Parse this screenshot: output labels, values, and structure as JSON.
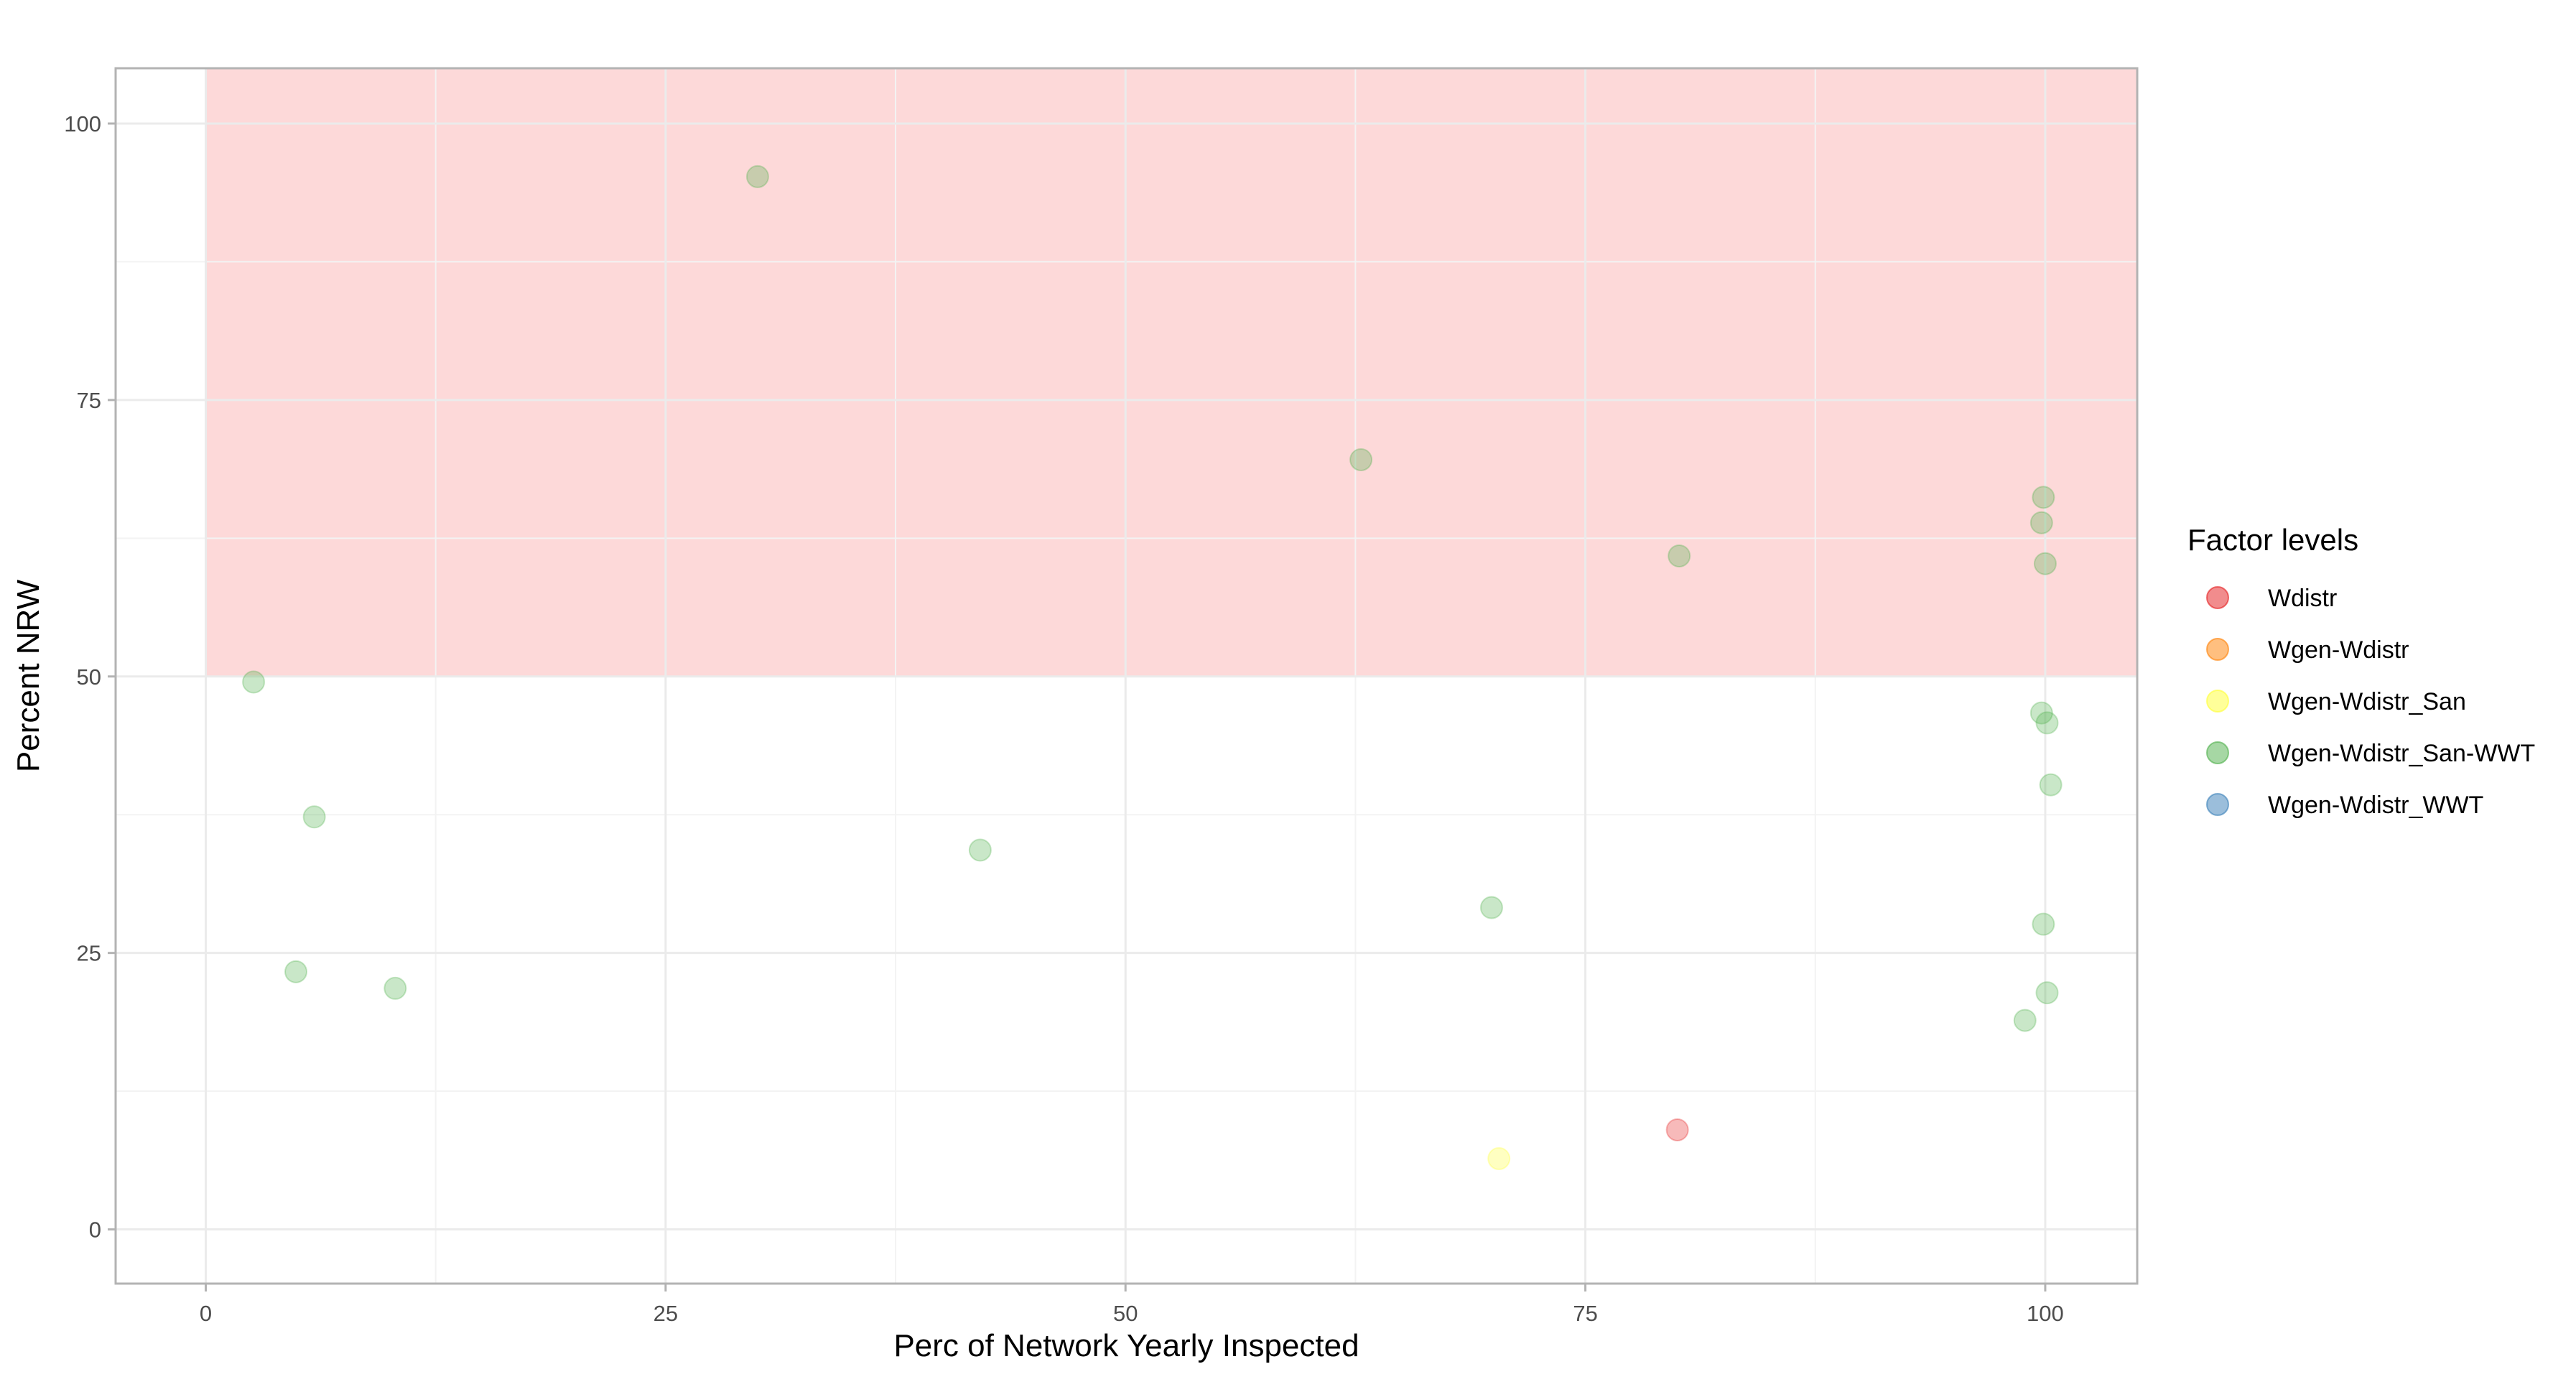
{
  "chart_data": {
    "type": "scatter",
    "xlabel": "Perc of Network Yearly Inspected",
    "ylabel": "Percent NRW",
    "xlim": [
      -4.9,
      105
    ],
    "ylim": [
      -4.9,
      105
    ],
    "x_ticks": [
      0,
      25,
      50,
      75,
      100
    ],
    "y_ticks": [
      0,
      25,
      50,
      75,
      100
    ],
    "grid": true,
    "shaded_region": {
      "x": [
        0,
        105
      ],
      "y": [
        50,
        105
      ],
      "color": "#fdd9d9"
    },
    "legend": {
      "title": "Factor levels",
      "position": "right",
      "entries": [
        {
          "name": "Wdistr",
          "color": "#e41a1c"
        },
        {
          "name": "Wgen-Wdistr",
          "color": "#ff7f00"
        },
        {
          "name": "Wgen-Wdistr_San",
          "color": "#ffff33"
        },
        {
          "name": "Wgen-Wdistr_San-WWT",
          "color": "#4daf4a"
        },
        {
          "name": "Wgen-Wdistr_WWT",
          "color": "#377eb8"
        }
      ]
    },
    "series": [
      {
        "name": "Wdistr",
        "color": "#e41a1c",
        "points": [
          [
            80,
            9
          ]
        ]
      },
      {
        "name": "Wgen-Wdistr",
        "color": "#ff7f00",
        "points": []
      },
      {
        "name": "Wgen-Wdistr_San",
        "color": "#ffff33",
        "points": [
          [
            70.3,
            6.4
          ]
        ]
      },
      {
        "name": "Wgen-Wdistr_San-WWT",
        "color": "#4daf4a",
        "points": [
          [
            30,
            95.2
          ],
          [
            62.8,
            69.6
          ],
          [
            80.1,
            60.9
          ],
          [
            99.9,
            66.2
          ],
          [
            99.8,
            63.9
          ],
          [
            100,
            60.2
          ],
          [
            2.6,
            49.5
          ],
          [
            5.9,
            37.3
          ],
          [
            4.9,
            23.3
          ],
          [
            10.3,
            21.8
          ],
          [
            42.1,
            34.3
          ],
          [
            69.9,
            29.1
          ],
          [
            99.8,
            46.7
          ],
          [
            100.1,
            45.8
          ],
          [
            100.3,
            40.2
          ],
          [
            99.9,
            27.6
          ],
          [
            100.1,
            21.4
          ],
          [
            98.9,
            18.9
          ]
        ]
      },
      {
        "name": "Wgen-Wdistr_WWT",
        "color": "#377eb8",
        "points": []
      }
    ]
  }
}
